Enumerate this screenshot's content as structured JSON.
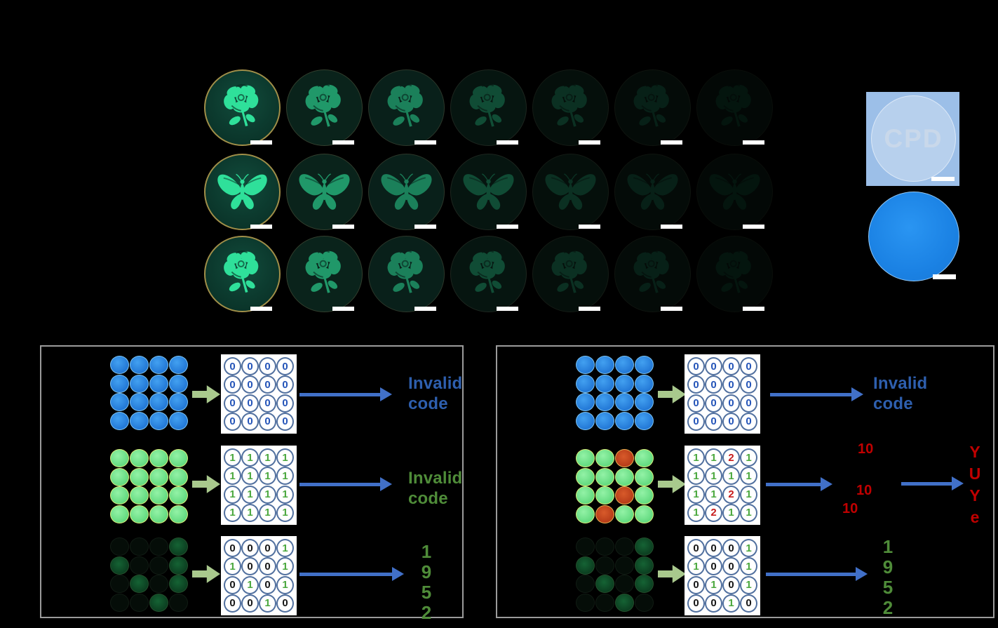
{
  "gallery": {
    "rows": [
      {
        "motif": "rose"
      },
      {
        "motif": "butterfly"
      },
      {
        "motif": "rose"
      }
    ],
    "samples_per_row": 7,
    "fade_levels": [
      1,
      0.62,
      0.5,
      0.27,
      0.16,
      0.1,
      0.06
    ],
    "glow_color": "#2fe09a"
  },
  "photos": {
    "cpd_label": "CPD"
  },
  "panels": [
    {
      "el_id": "panel-left",
      "rows": [
        {
          "disc_type_grid": [
            [
              "B",
              "B",
              "B",
              "B"
            ],
            [
              "B",
              "B",
              "B",
              "B"
            ],
            [
              "B",
              "B",
              "B",
              "B"
            ],
            [
              "B",
              "B",
              "B",
              "B"
            ]
          ],
          "code_grid": [
            [
              "0",
              "0",
              "0",
              "0"
            ],
            [
              "0",
              "0",
              "0",
              "0"
            ],
            [
              "0",
              "0",
              "0",
              "0"
            ],
            [
              "0",
              "0",
              "0",
              "0"
            ]
          ],
          "digit_colors": {
            "0": "blue"
          },
          "result": {
            "kind": "label",
            "lines": [
              "Invalid",
              "code"
            ],
            "color": "blue"
          }
        },
        {
          "disc_type_grid": [
            [
              "G",
              "G",
              "G",
              "G"
            ],
            [
              "G",
              "G",
              "G",
              "G"
            ],
            [
              "G",
              "G",
              "G",
              "G"
            ],
            [
              "G",
              "G",
              "G",
              "G"
            ]
          ],
          "code_grid": [
            [
              "1",
              "1",
              "1",
              "1"
            ],
            [
              "1",
              "1",
              "1",
              "1"
            ],
            [
              "1",
              "1",
              "1",
              "1"
            ],
            [
              "1",
              "1",
              "1",
              "1"
            ]
          ],
          "digit_colors": {
            "1": "green"
          },
          "result": {
            "kind": "label",
            "lines": [
              "Invalid",
              "code"
            ],
            "color": "green"
          }
        },
        {
          "disc_type_grid": [
            [
              "D0",
              "D0",
              "D0",
              "D1"
            ],
            [
              "D1",
              "D0",
              "D0",
              "D1"
            ],
            [
              "D0",
              "D1",
              "D0",
              "D1"
            ],
            [
              "D0",
              "D0",
              "D1",
              "D0"
            ]
          ],
          "code_grid": [
            [
              "0",
              "0",
              "0",
              "1"
            ],
            [
              "1",
              "0",
              "0",
              "1"
            ],
            [
              "0",
              "1",
              "0",
              "1"
            ],
            [
              "0",
              "0",
              "1",
              "0"
            ]
          ],
          "digit_colors": {
            "0": "black",
            "1": "green"
          },
          "result": {
            "kind": "digits",
            "lines": [
              "1",
              "9",
              "5",
              "2"
            ],
            "color": "green"
          }
        }
      ]
    },
    {
      "el_id": "panel-right",
      "rows": [
        {
          "disc_type_grid": [
            [
              "B",
              "B",
              "B",
              "B"
            ],
            [
              "B",
              "B",
              "B",
              "B"
            ],
            [
              "B",
              "B",
              "B",
              "B"
            ],
            [
              "B",
              "B",
              "B",
              "B"
            ]
          ],
          "code_grid": [
            [
              "0",
              "0",
              "0",
              "0"
            ],
            [
              "0",
              "0",
              "0",
              "0"
            ],
            [
              "0",
              "0",
              "0",
              "0"
            ],
            [
              "0",
              "0",
              "0",
              "0"
            ]
          ],
          "digit_colors": {
            "0": "blue"
          },
          "result": {
            "kind": "label",
            "lines": [
              "Invalid",
              "code"
            ],
            "color": "blue"
          }
        },
        {
          "disc_type_grid": [
            [
              "G",
              "G",
              "R",
              "G"
            ],
            [
              "G",
              "G",
              "G",
              "G"
            ],
            [
              "G",
              "G",
              "R",
              "G"
            ],
            [
              "G",
              "R",
              "G",
              "G"
            ]
          ],
          "code_grid": [
            [
              "1",
              "1",
              "2",
              "1"
            ],
            [
              "1",
              "1",
              "1",
              "1"
            ],
            [
              "1",
              "1",
              "2",
              "1"
            ],
            [
              "1",
              "2",
              "1",
              "1"
            ]
          ],
          "digit_colors": {
            "1": "green",
            "2": "red"
          },
          "annotations": [
            "10",
            "10",
            "10"
          ],
          "result": {
            "kind": "letters",
            "lines": [
              "Y",
              "U",
              "Y",
              "e"
            ],
            "color": "red"
          }
        },
        {
          "disc_type_grid": [
            [
              "D0",
              "D0",
              "D0",
              "D1"
            ],
            [
              "D1",
              "D0",
              "D0",
              "D1"
            ],
            [
              "D0",
              "D1",
              "D0",
              "D1"
            ],
            [
              "D0",
              "D0",
              "D1",
              "D0"
            ]
          ],
          "code_grid": [
            [
              "0",
              "0",
              "0",
              "1"
            ],
            [
              "1",
              "0",
              "0",
              "1"
            ],
            [
              "0",
              "1",
              "0",
              "1"
            ],
            [
              "0",
              "0",
              "1",
              "0"
            ]
          ],
          "digit_colors": {
            "0": "black",
            "1": "green"
          },
          "result": {
            "kind": "digits",
            "lines": [
              "1",
              "9",
              "5",
              "2"
            ],
            "color": "green"
          }
        }
      ]
    }
  ],
  "colors": {
    "background": "#000000",
    "panel_border": "#9b9b9b",
    "arrow_blue": "#4170c8",
    "arrow_green": "#a9c98d",
    "invalid_blue": "#2e5fae",
    "invalid_green": "#4f8c39",
    "decoded_green": "#4f8c39",
    "error_red": "#c00000",
    "code_zero_blue": "#2454b8",
    "code_one_green": "#4ba83e",
    "code_zero_black": "#161616",
    "disc_blue": "#1e7fd8",
    "disc_green": "#5edc82",
    "disc_red": "#bf3c1a",
    "photo_bg_blue": "#9cbfe8",
    "film_blue": "#1d86ea",
    "scale_bar": "#ffffff",
    "glow_green": "#2fe09a"
  }
}
